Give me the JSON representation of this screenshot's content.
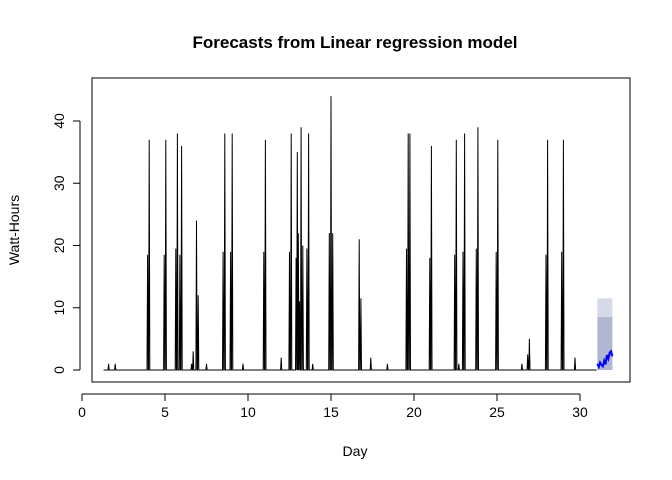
{
  "chart_data": {
    "type": "line",
    "title": "Forecasts from Linear regression model",
    "xlabel": "Day",
    "ylabel": "Watt-Hours",
    "xlim": [
      0,
      32
    ],
    "ylim": [
      -1,
      46
    ],
    "xticks": [
      0,
      5,
      10,
      15,
      20,
      25,
      30
    ],
    "yticks": [
      0,
      10,
      20,
      30,
      40
    ],
    "grid": false,
    "series": [
      {
        "role": "observed",
        "color": "#000000",
        "baseline": 0,
        "spikes": [
          {
            "x": 1.6,
            "y": 1
          },
          {
            "x": 2.0,
            "y": 1
          },
          {
            "x": 3.95,
            "y": 18.5
          },
          {
            "x": 4.05,
            "y": 37
          },
          {
            "x": 4.95,
            "y": 18.5
          },
          {
            "x": 5.05,
            "y": 37
          },
          {
            "x": 5.65,
            "y": 19.5
          },
          {
            "x": 5.75,
            "y": 38
          },
          {
            "x": 5.9,
            "y": 18.5
          },
          {
            "x": 6.0,
            "y": 36
          },
          {
            "x": 6.6,
            "y": 1
          },
          {
            "x": 6.7,
            "y": 3
          },
          {
            "x": 6.9,
            "y": 24
          },
          {
            "x": 7.0,
            "y": 12
          },
          {
            "x": 7.5,
            "y": 1
          },
          {
            "x": 8.5,
            "y": 19
          },
          {
            "x": 8.6,
            "y": 38
          },
          {
            "x": 8.95,
            "y": 19
          },
          {
            "x": 9.05,
            "y": 38
          },
          {
            "x": 9.7,
            "y": 1
          },
          {
            "x": 10.95,
            "y": 19
          },
          {
            "x": 11.05,
            "y": 37
          },
          {
            "x": 12.0,
            "y": 2
          },
          {
            "x": 12.5,
            "y": 19
          },
          {
            "x": 12.6,
            "y": 38
          },
          {
            "x": 12.9,
            "y": 18
          },
          {
            "x": 12.97,
            "y": 35
          },
          {
            "x": 13.03,
            "y": 22
          },
          {
            "x": 13.1,
            "y": 11
          },
          {
            "x": 13.2,
            "y": 39
          },
          {
            "x": 13.3,
            "y": 20
          },
          {
            "x": 13.55,
            "y": 19.5
          },
          {
            "x": 13.65,
            "y": 38
          },
          {
            "x": 13.9,
            "y": 1
          },
          {
            "x": 14.9,
            "y": 22
          },
          {
            "x": 15.0,
            "y": 44
          },
          {
            "x": 15.1,
            "y": 22
          },
          {
            "x": 16.7,
            "y": 21
          },
          {
            "x": 16.8,
            "y": 11.5
          },
          {
            "x": 17.4,
            "y": 2
          },
          {
            "x": 18.4,
            "y": 1
          },
          {
            "x": 19.55,
            "y": 19.5
          },
          {
            "x": 19.65,
            "y": 38
          },
          {
            "x": 19.75,
            "y": 38
          },
          {
            "x": 20.95,
            "y": 18
          },
          {
            "x": 21.05,
            "y": 36
          },
          {
            "x": 22.45,
            "y": 18.5
          },
          {
            "x": 22.55,
            "y": 37
          },
          {
            "x": 22.7,
            "y": 1
          },
          {
            "x": 22.95,
            "y": 19
          },
          {
            "x": 23.05,
            "y": 38
          },
          {
            "x": 23.75,
            "y": 19.5
          },
          {
            "x": 23.85,
            "y": 39
          },
          {
            "x": 24.95,
            "y": 19
          },
          {
            "x": 25.05,
            "y": 37
          },
          {
            "x": 26.5,
            "y": 1
          },
          {
            "x": 26.85,
            "y": 2.5
          },
          {
            "x": 26.95,
            "y": 5
          },
          {
            "x": 27.95,
            "y": 18.5
          },
          {
            "x": 28.05,
            "y": 37
          },
          {
            "x": 28.9,
            "y": 19
          },
          {
            "x": 29.0,
            "y": 37
          },
          {
            "x": 29.7,
            "y": 2
          }
        ]
      },
      {
        "role": "forecast",
        "color": "#0000ff",
        "x_range": [
          31.05,
          31.95
        ],
        "values": [
          1,
          0.5,
          1.2,
          0.8,
          0.6,
          1.5,
          0.9,
          2.4,
          1.8,
          2.8,
          3.0,
          2.2
        ]
      }
    ],
    "intervals": {
      "x_range": [
        31.05,
        31.95
      ],
      "outer": {
        "lower": 0,
        "upper": 11.5,
        "color": "#d6d9e8"
      },
      "inner": {
        "lower": 0,
        "upper": 8.5,
        "color": "#b1b6d1"
      }
    }
  }
}
